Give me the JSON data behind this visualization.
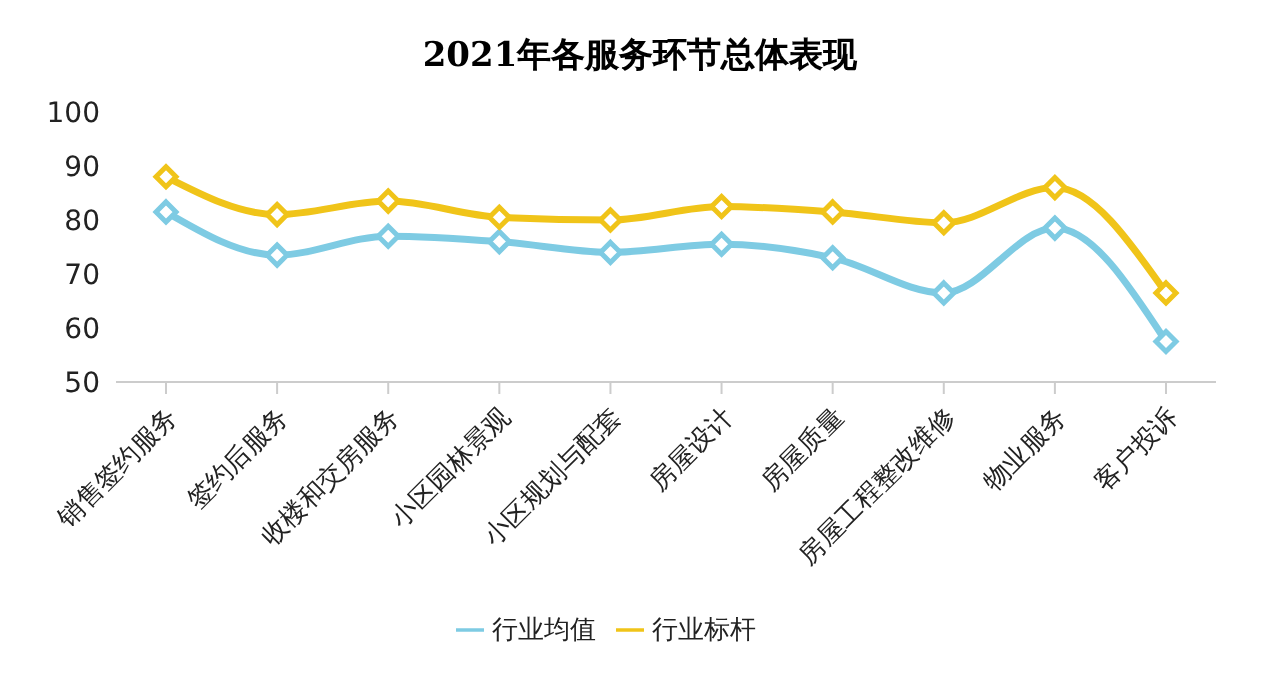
{
  "chart_data": {
    "type": "line",
    "title": "2021年各服务环节总体表现",
    "categories": [
      "销售签约服务",
      "签约后服务",
      "收楼和交房服务",
      "小区园林景观",
      "小区规划与配套",
      "房屋设计",
      "房屋质量",
      "房屋工程整改维修",
      "物业服务",
      "客户投诉"
    ],
    "series": [
      {
        "name": "行业均值",
        "color": "#7ecbe3",
        "values": [
          81.5,
          73.5,
          77,
          76,
          74,
          75.5,
          73,
          66.5,
          78.5,
          57.5
        ]
      },
      {
        "name": "行业标杆",
        "color": "#f0c419",
        "values": [
          88,
          81,
          83.5,
          80.5,
          80,
          82.5,
          81.5,
          79.5,
          86,
          66.5
        ]
      }
    ],
    "ylim": [
      50,
      100
    ],
    "yticks": [
      50,
      60,
      70,
      80,
      90,
      100
    ],
    "grid": false,
    "legend": "bottom",
    "marker": "diamond",
    "line_style": "solid"
  }
}
